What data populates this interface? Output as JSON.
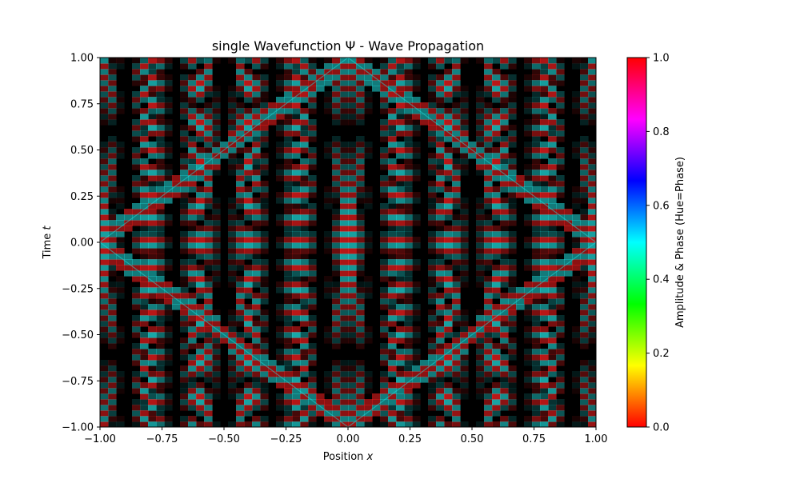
{
  "chart_data": {
    "type": "heatmap",
    "title": "single Wavefunction Ψ - Wave Propagation",
    "xlabel": "Position",
    "xlabel_var": "x",
    "ylabel": "Time",
    "ylabel_var": "t",
    "xlim": [
      -1.0,
      1.0
    ],
    "ylim": [
      -1.0,
      1.0
    ],
    "x_ticks": [
      "−1.00",
      "−0.75",
      "−0.50",
      "−0.25",
      "0.00",
      "0.25",
      "0.50",
      "0.75",
      "1.00"
    ],
    "y_ticks": [
      "−1.00",
      "−0.75",
      "−0.50",
      "−0.25",
      "0.00",
      "0.25",
      "0.50",
      "0.75",
      "1.00"
    ],
    "colorbar": {
      "label": "Amplitude & Phase (Hue=Phase)",
      "range": [
        0.0,
        1.0
      ],
      "ticks": [
        "0.0",
        "0.2",
        "0.4",
        "0.6",
        "0.8",
        "1.0"
      ],
      "colormap": "hsv"
    },
    "field_colors": [
      "#ff2020",
      "#20e0e0"
    ],
    "grid": false
  }
}
